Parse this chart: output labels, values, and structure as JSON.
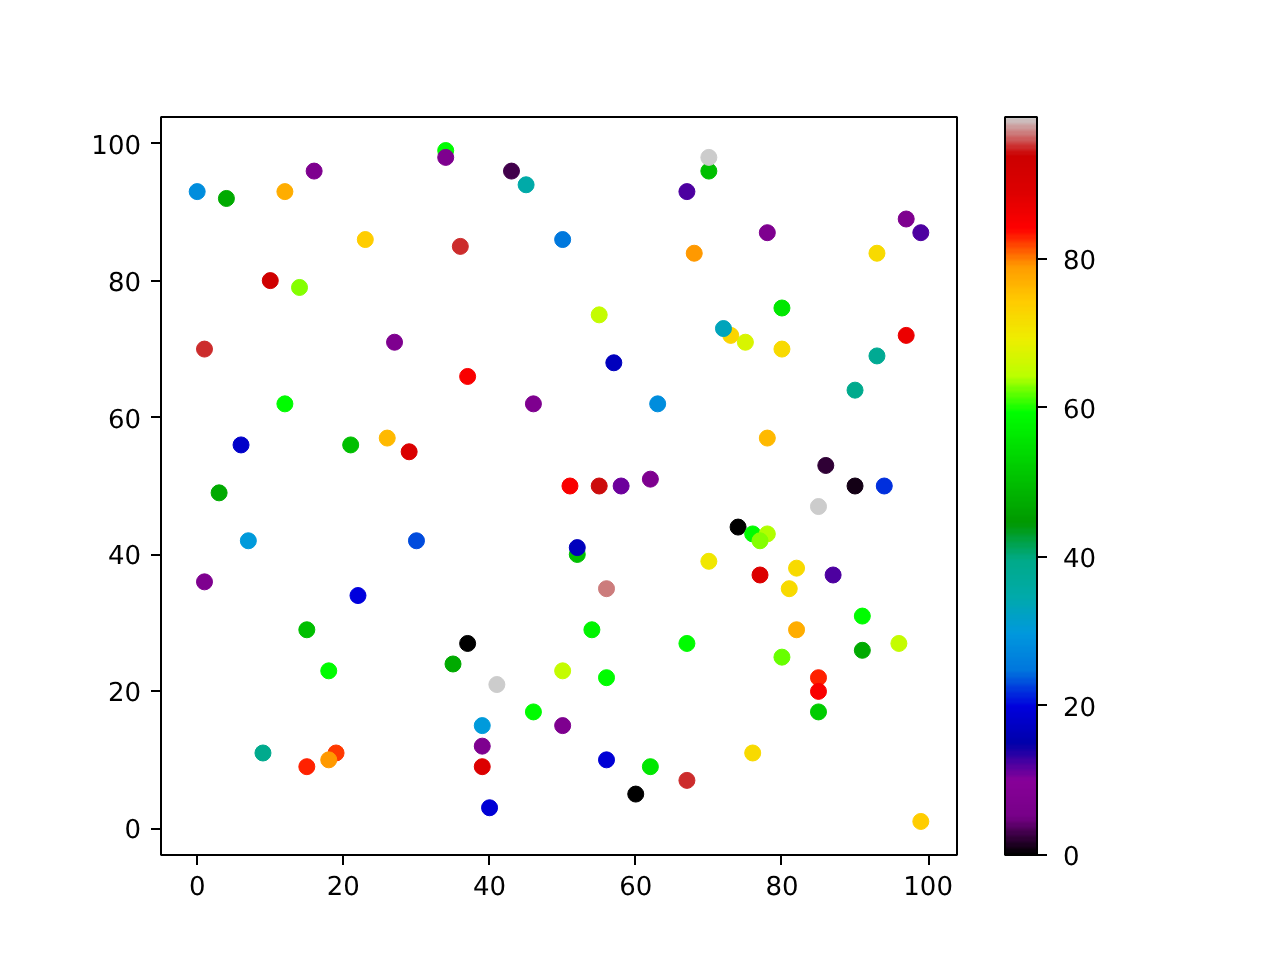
{
  "chart_data": {
    "type": "scatter",
    "marker": "circle",
    "x": [
      0,
      4,
      12,
      16,
      34,
      34,
      43,
      45,
      23,
      36,
      50,
      10,
      14,
      1,
      27,
      37,
      12,
      46,
      6,
      21,
      26,
      29,
      3,
      70,
      70,
      67,
      78,
      97,
      99,
      68,
      93,
      55,
      80,
      73,
      72,
      75,
      80,
      57,
      97,
      93,
      90,
      63,
      78,
      86,
      90,
      94,
      51,
      55,
      58,
      62,
      7,
      30,
      1,
      22,
      15,
      37,
      35,
      18,
      41,
      46,
      50,
      50,
      39,
      39,
      39,
      40,
      9,
      15,
      19,
      18,
      85,
      74,
      76,
      78,
      77,
      52,
      52,
      70,
      82,
      77,
      87,
      81,
      56,
      54,
      82,
      91,
      91,
      96,
      67,
      80,
      56,
      85,
      85,
      85,
      56,
      62,
      67,
      60,
      76,
      99
    ],
    "values": [
      93,
      92,
      93,
      96,
      99,
      98,
      96,
      94,
      86,
      85,
      86,
      80,
      79,
      70,
      71,
      66,
      62,
      62,
      56,
      56,
      57,
      55,
      49,
      96,
      98,
      93,
      87,
      89,
      87,
      84,
      84,
      75,
      76,
      72,
      73,
      71,
      70,
      68,
      72,
      69,
      64,
      62,
      57,
      53,
      50,
      50,
      50,
      50,
      50,
      51,
      42,
      42,
      36,
      34,
      29,
      27,
      24,
      23,
      21,
      17,
      23,
      15,
      15,
      12,
      9,
      3,
      11,
      9,
      11,
      10,
      47,
      44,
      43,
      43,
      42,
      40,
      41,
      39,
      38,
      37,
      37,
      35,
      35,
      29,
      29,
      31,
      26,
      27,
      27,
      25,
      22,
      22,
      20,
      17,
      10,
      9,
      7,
      5,
      11,
      1
    ],
    "cvalues": [
      28,
      47,
      77,
      7,
      59,
      7,
      3,
      35,
      74,
      95,
      25,
      93,
      63,
      95,
      7,
      85,
      59,
      7,
      18,
      50,
      76,
      90,
      47,
      50,
      99,
      12,
      7,
      7,
      12,
      79,
      72,
      65,
      56,
      73,
      33,
      67,
      72,
      17,
      87,
      38,
      39,
      28,
      76,
      2,
      1,
      22,
      85,
      94,
      11,
      7,
      30,
      23,
      7,
      20,
      50,
      0,
      47,
      59,
      99,
      59,
      65,
      7,
      30,
      7,
      89,
      19,
      39,
      83,
      82,
      79,
      99,
      0,
      59,
      64,
      63,
      50,
      17,
      70,
      72,
      89,
      12,
      72,
      97,
      58,
      77,
      59,
      47,
      65,
      59,
      62,
      59,
      83,
      85,
      52,
      19,
      56,
      95,
      0,
      72,
      74
    ],
    "xlim": [
      -4.95,
      103.95
    ],
    "ylim": [
      -3.9,
      103.9
    ],
    "xticks": [
      0,
      20,
      40,
      60,
      80,
      100
    ],
    "yticks": [
      0,
      20,
      40,
      60,
      80,
      100
    ],
    "clim": [
      0,
      99
    ],
    "cticks": [
      0,
      20,
      40,
      60,
      80
    ]
  }
}
